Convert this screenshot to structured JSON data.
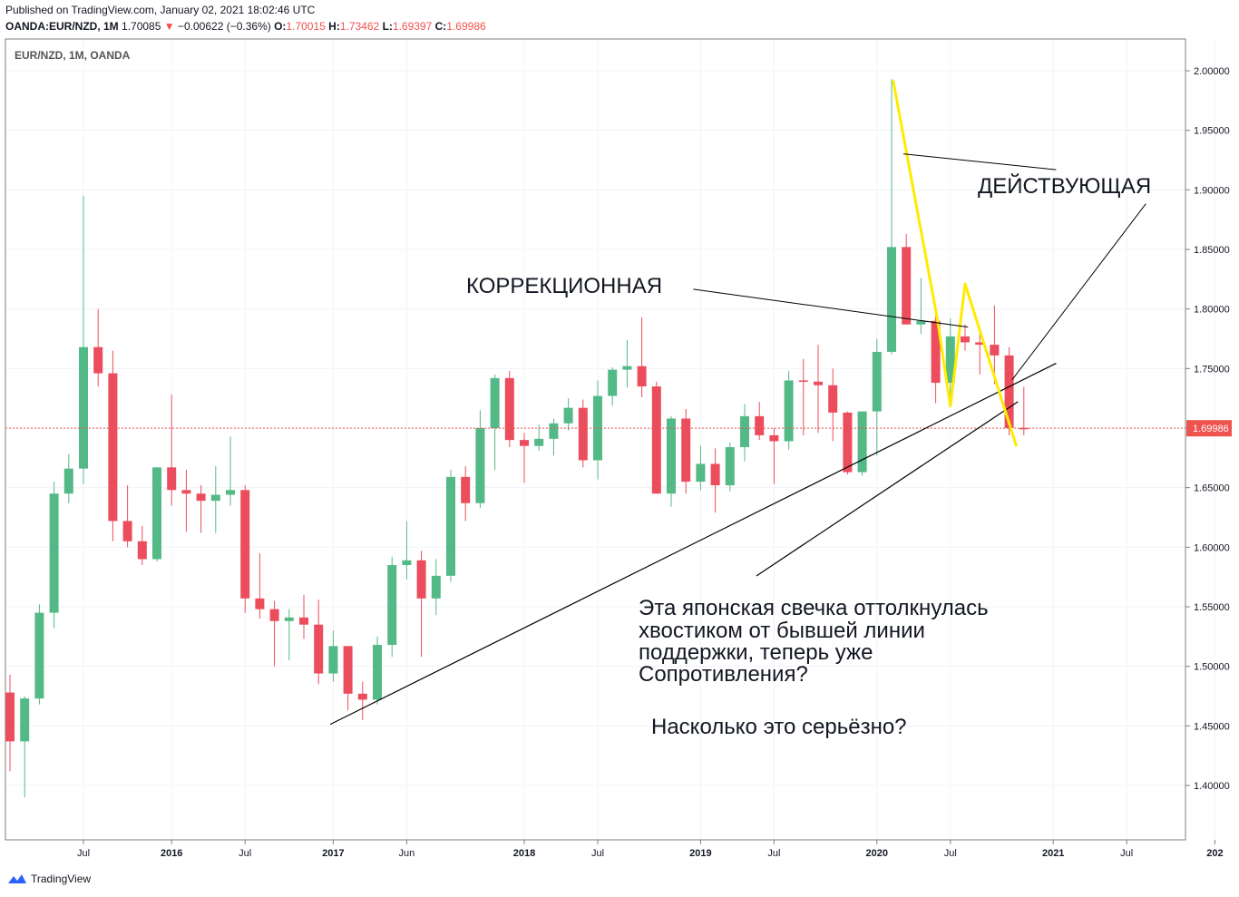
{
  "header": {
    "published": "Published on TradingView.com, January 02, 2021 18:02:46 UTC",
    "symbol": "OANDA:EUR/NZD, 1M",
    "last": "1.70085",
    "change": "−0.00622 (−0.36%)",
    "o_label": "O:",
    "o": "1.70015",
    "h_label": "H:",
    "h": "1.73462",
    "l_label": "L:",
    "l": "1.69397",
    "c_label": "C:",
    "c": "1.69986"
  },
  "footer": {
    "brand": "TradingView"
  },
  "colors": {
    "up": "#26a69a",
    "up_body": "#53b987",
    "down": "#ef5350",
    "down_body": "#eb4d5c",
    "yellow": "#ffeb00",
    "price_line": "#ef5350"
  },
  "chart_data": {
    "type": "candlestick",
    "title": "EUR/NZD, 1M, OANDA",
    "current_price_label": "1.69986",
    "y_ticks": [
      "2.00000",
      "1.95000",
      "1.90000",
      "1.85000",
      "1.80000",
      "1.75000",
      "1.70000",
      "1.65000",
      "1.60000",
      "1.55000",
      "1.50000",
      "1.45000",
      "1.40000"
    ],
    "y_tick_values": [
      2.0,
      1.95,
      1.9,
      1.85,
      1.8,
      1.75,
      1.7,
      1.65,
      1.6,
      1.55,
      1.5,
      1.45,
      1.4
    ],
    "ylim": [
      1.36,
      2.025
    ],
    "x_ticks": [
      {
        "label": "Jul",
        "index": 5
      },
      {
        "label": "2016",
        "index": 11
      },
      {
        "label": "Jul",
        "index": 16
      },
      {
        "label": "2017",
        "index": 22
      },
      {
        "label": "Jun",
        "index": 27
      },
      {
        "label": "2018",
        "index": 35
      },
      {
        "label": "Jul",
        "index": 40
      },
      {
        "label": "2019",
        "index": 47
      },
      {
        "label": "Jul",
        "index": 52
      },
      {
        "label": "2020",
        "index": 59
      },
      {
        "label": "Jul",
        "index": 64
      },
      {
        "label": "2021",
        "index": 71
      },
      {
        "label": "Jul",
        "index": 76
      },
      {
        "label": "202",
        "index": 82
      }
    ],
    "candles": [
      [
        1.478,
        1.493,
        1.412,
        1.437
      ],
      [
        1.437,
        1.475,
        1.39,
        1.473
      ],
      [
        1.473,
        1.552,
        1.468,
        1.545
      ],
      [
        1.545,
        1.655,
        1.532,
        1.645
      ],
      [
        1.645,
        1.678,
        1.637,
        1.666
      ],
      [
        1.666,
        1.895,
        1.653,
        1.768
      ],
      [
        1.768,
        1.8,
        1.735,
        1.746
      ],
      [
        1.746,
        1.765,
        1.605,
        1.622
      ],
      [
        1.622,
        1.652,
        1.6,
        1.605
      ],
      [
        1.605,
        1.618,
        1.585,
        1.59
      ],
      [
        1.59,
        1.667,
        1.588,
        1.667
      ],
      [
        1.667,
        1.728,
        1.635,
        1.648
      ],
      [
        1.648,
        1.665,
        1.613,
        1.645
      ],
      [
        1.645,
        1.652,
        1.612,
        1.639
      ],
      [
        1.639,
        1.668,
        1.612,
        1.644
      ],
      [
        1.644,
        1.693,
        1.635,
        1.648
      ],
      [
        1.648,
        1.652,
        1.545,
        1.557
      ],
      [
        1.557,
        1.595,
        1.54,
        1.548
      ],
      [
        1.548,
        1.555,
        1.5,
        1.538
      ],
      [
        1.538,
        1.548,
        1.505,
        1.541
      ],
      [
        1.541,
        1.56,
        1.523,
        1.535
      ],
      [
        1.535,
        1.556,
        1.485,
        1.494
      ],
      [
        1.494,
        1.53,
        1.487,
        1.517
      ],
      [
        1.517,
        1.517,
        1.463,
        1.477
      ],
      [
        1.477,
        1.487,
        1.455,
        1.472
      ],
      [
        1.472,
        1.525,
        1.468,
        1.518
      ],
      [
        1.518,
        1.592,
        1.508,
        1.585
      ],
      [
        1.585,
        1.622,
        1.573,
        1.589
      ],
      [
        1.589,
        1.597,
        1.508,
        1.557
      ],
      [
        1.557,
        1.59,
        1.543,
        1.576
      ],
      [
        1.576,
        1.665,
        1.571,
        1.659
      ],
      [
        1.659,
        1.668,
        1.622,
        1.637
      ],
      [
        1.637,
        1.715,
        1.633,
        1.7
      ],
      [
        1.7,
        1.745,
        1.665,
        1.742
      ],
      [
        1.742,
        1.748,
        1.684,
        1.69
      ],
      [
        1.69,
        1.696,
        1.654,
        1.685
      ],
      [
        1.685,
        1.703,
        1.681,
        1.691
      ],
      [
        1.691,
        1.708,
        1.677,
        1.704
      ],
      [
        1.704,
        1.725,
        1.698,
        1.717
      ],
      [
        1.717,
        1.724,
        1.667,
        1.673
      ],
      [
        1.673,
        1.74,
        1.657,
        1.727
      ],
      [
        1.727,
        1.751,
        1.719,
        1.749
      ],
      [
        1.749,
        1.774,
        1.734,
        1.752
      ],
      [
        1.752,
        1.793,
        1.726,
        1.735
      ],
      [
        1.735,
        1.739,
        1.645,
        1.645
      ],
      [
        1.645,
        1.71,
        1.634,
        1.708
      ],
      [
        1.708,
        1.716,
        1.645,
        1.655
      ],
      [
        1.655,
        1.685,
        1.648,
        1.67
      ],
      [
        1.67,
        1.683,
        1.629,
        1.652
      ],
      [
        1.652,
        1.688,
        1.647,
        1.684
      ],
      [
        1.684,
        1.72,
        1.672,
        1.71
      ],
      [
        1.71,
        1.722,
        1.69,
        1.694
      ],
      [
        1.694,
        1.7,
        1.653,
        1.689
      ],
      [
        1.689,
        1.748,
        1.682,
        1.74
      ],
      [
        1.74,
        1.758,
        1.694,
        1.739
      ],
      [
        1.739,
        1.77,
        1.696,
        1.736
      ],
      [
        1.736,
        1.75,
        1.689,
        1.713
      ],
      [
        1.713,
        1.714,
        1.661,
        1.663
      ],
      [
        1.663,
        1.714,
        1.66,
        1.714
      ],
      [
        1.714,
        1.775,
        1.677,
        1.764
      ],
      [
        1.764,
        1.993,
        1.762,
        1.852
      ],
      [
        1.852,
        1.863,
        1.787,
        1.787
      ],
      [
        1.787,
        1.826,
        1.779,
        1.79
      ],
      [
        1.79,
        1.795,
        1.721,
        1.738
      ],
      [
        1.738,
        1.792,
        1.72,
        1.777
      ],
      [
        1.777,
        1.787,
        1.765,
        1.772
      ],
      [
        1.772,
        1.785,
        1.745,
        1.77
      ],
      [
        1.77,
        1.803,
        1.737,
        1.761
      ],
      [
        1.761,
        1.768,
        1.694,
        1.7
      ],
      [
        1.70015,
        1.73462,
        1.69397,
        1.69986
      ]
    ],
    "lines": [
      {
        "kind": "trend",
        "color": "#000000",
        "from": {
          "i": 21.8,
          "p": 1.4513
        },
        "to": {
          "i": 71.2,
          "p": 1.7544
        }
      },
      {
        "kind": "trend",
        "color": "#000000",
        "from": {
          "i": 50.8,
          "p": 1.5759
        },
        "to": {
          "i": 68.6,
          "p": 1.7222
        }
      },
      {
        "kind": "yellow",
        "color": "#ffeb00",
        "points": [
          {
            "i": 60.1,
            "p": 1.9921
          },
          {
            "i": 63.1,
            "p": 1.7926
          },
          {
            "i": 64.0,
            "p": 1.7184
          },
          {
            "i": 65.0,
            "p": 1.8211
          },
          {
            "i": 68.5,
            "p": 1.6846
          }
        ]
      }
    ],
    "annotations": [
      {
        "text": "ДЕЙСТВУЮЩАЯ",
        "pointers": [
          {
            "from": {
              "i": 60.8,
              "p": 1.9302
            },
            "to": {
              "i": 71.2,
              "p": 1.9169
            }
          },
          {
            "from": {
              "i": 77.3,
              "p": 1.8883
            },
            "to": {
              "i": 68.2,
              "p": 1.7405
            }
          }
        ]
      },
      {
        "text": "КОРРЕКЦИОННАЯ",
        "pointers": [
          {
            "from": {
              "i": 46.5,
              "p": 1.8166
            },
            "to": {
              "i": 65.2,
              "p": 1.7848
            }
          }
        ]
      },
      {
        "text_lines": [
          "Эта японская свечка оттолкнулась",
          "хвостиком от бывшей линии",
          "поддержки, теперь уже",
          "Сопротивления?"
        ]
      },
      {
        "text": "Насколько это серьёзно?"
      }
    ]
  }
}
